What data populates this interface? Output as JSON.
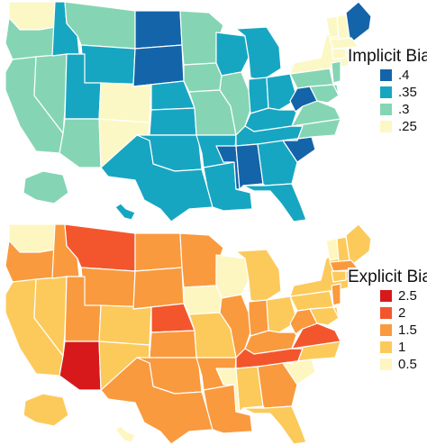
{
  "maps": {
    "implicit": {
      "legend_title": "Implicit Bias",
      "legend": [
        {
          "label": ".4",
          "color": "#1464a9"
        },
        {
          "label": ".35",
          "color": "#17a6c2"
        },
        {
          "label": ".3",
          "color": "#85d5b4"
        },
        {
          "label": ".25",
          "color": "#fbf8c6"
        }
      ],
      "default_class": 1,
      "states": {
        "ND": 0,
        "SD": 0,
        "MS": 0,
        "AL": 0,
        "SC": 0,
        "WV": 0,
        "ME": 0,
        "WA": 3,
        "OR": 2,
        "CA": 2,
        "NV": 2,
        "AZ": 2,
        "UT": 1,
        "CO": 3,
        "NM": 3,
        "ID": 1,
        "MT": 2,
        "WY": 1,
        "NE": 1,
        "KS": 1,
        "OK": 1,
        "TX": 1,
        "MN": 2,
        "IA": 2,
        "MO": 2,
        "AR": 1,
        "LA": 1,
        "WI": 1,
        "IL": 2,
        "MI": 1,
        "IN": 1,
        "OH": 1,
        "KY": 1,
        "TN": 1,
        "GA": 1,
        "FL": 1,
        "NC": 2,
        "VA": 2,
        "PA": 2,
        "NY": 3,
        "VT": 3,
        "NH": 3,
        "MA": 3,
        "CT": 3,
        "RI": 3,
        "NJ": 2,
        "DE": 2,
        "MD": 2,
        "AK": 2,
        "HI": 1
      }
    },
    "explicit": {
      "legend_title": "Explicit Bias",
      "legend": [
        {
          "label": "2.5",
          "color": "#d7191c"
        },
        {
          "label": "2",
          "color": "#f3562d"
        },
        {
          "label": "1.5",
          "color": "#f99a3e"
        },
        {
          "label": "1",
          "color": "#fcca5b"
        },
        {
          "label": "0.5",
          "color": "#fdf6c0"
        }
      ],
      "default_class": 2,
      "states": {
        "AZ": 0,
        "MT": 1,
        "NE": 1,
        "TN": 1,
        "VA": 1,
        "ND": 2,
        "WA": 4,
        "OR": 2,
        "CA": 3,
        "NV": 3,
        "ID": 2,
        "WY": 2,
        "UT": 2,
        "CO": 3,
        "NM": 3,
        "SD": 2,
        "KS": 2,
        "OK": 2,
        "TX": 2,
        "MN": 2,
        "IA": 4,
        "MO": 3,
        "AR": 2,
        "LA": 2,
        "WI": 4,
        "IL": 2,
        "MI": 3,
        "IN": 2,
        "OH": 3,
        "KY": 2,
        "MS": 4,
        "AL": 3,
        "GA": 2,
        "FL": 3,
        "SC": 4,
        "NC": 3,
        "WV": 2,
        "PA": 3,
        "NY": 3,
        "VT": 4,
        "NH": 3,
        "ME": 3,
        "MA": 2,
        "CT": 3,
        "RI": 3,
        "NJ": 2,
        "DE": 3,
        "MD": 3,
        "AK": 3,
        "HI": 4
      }
    }
  }
}
